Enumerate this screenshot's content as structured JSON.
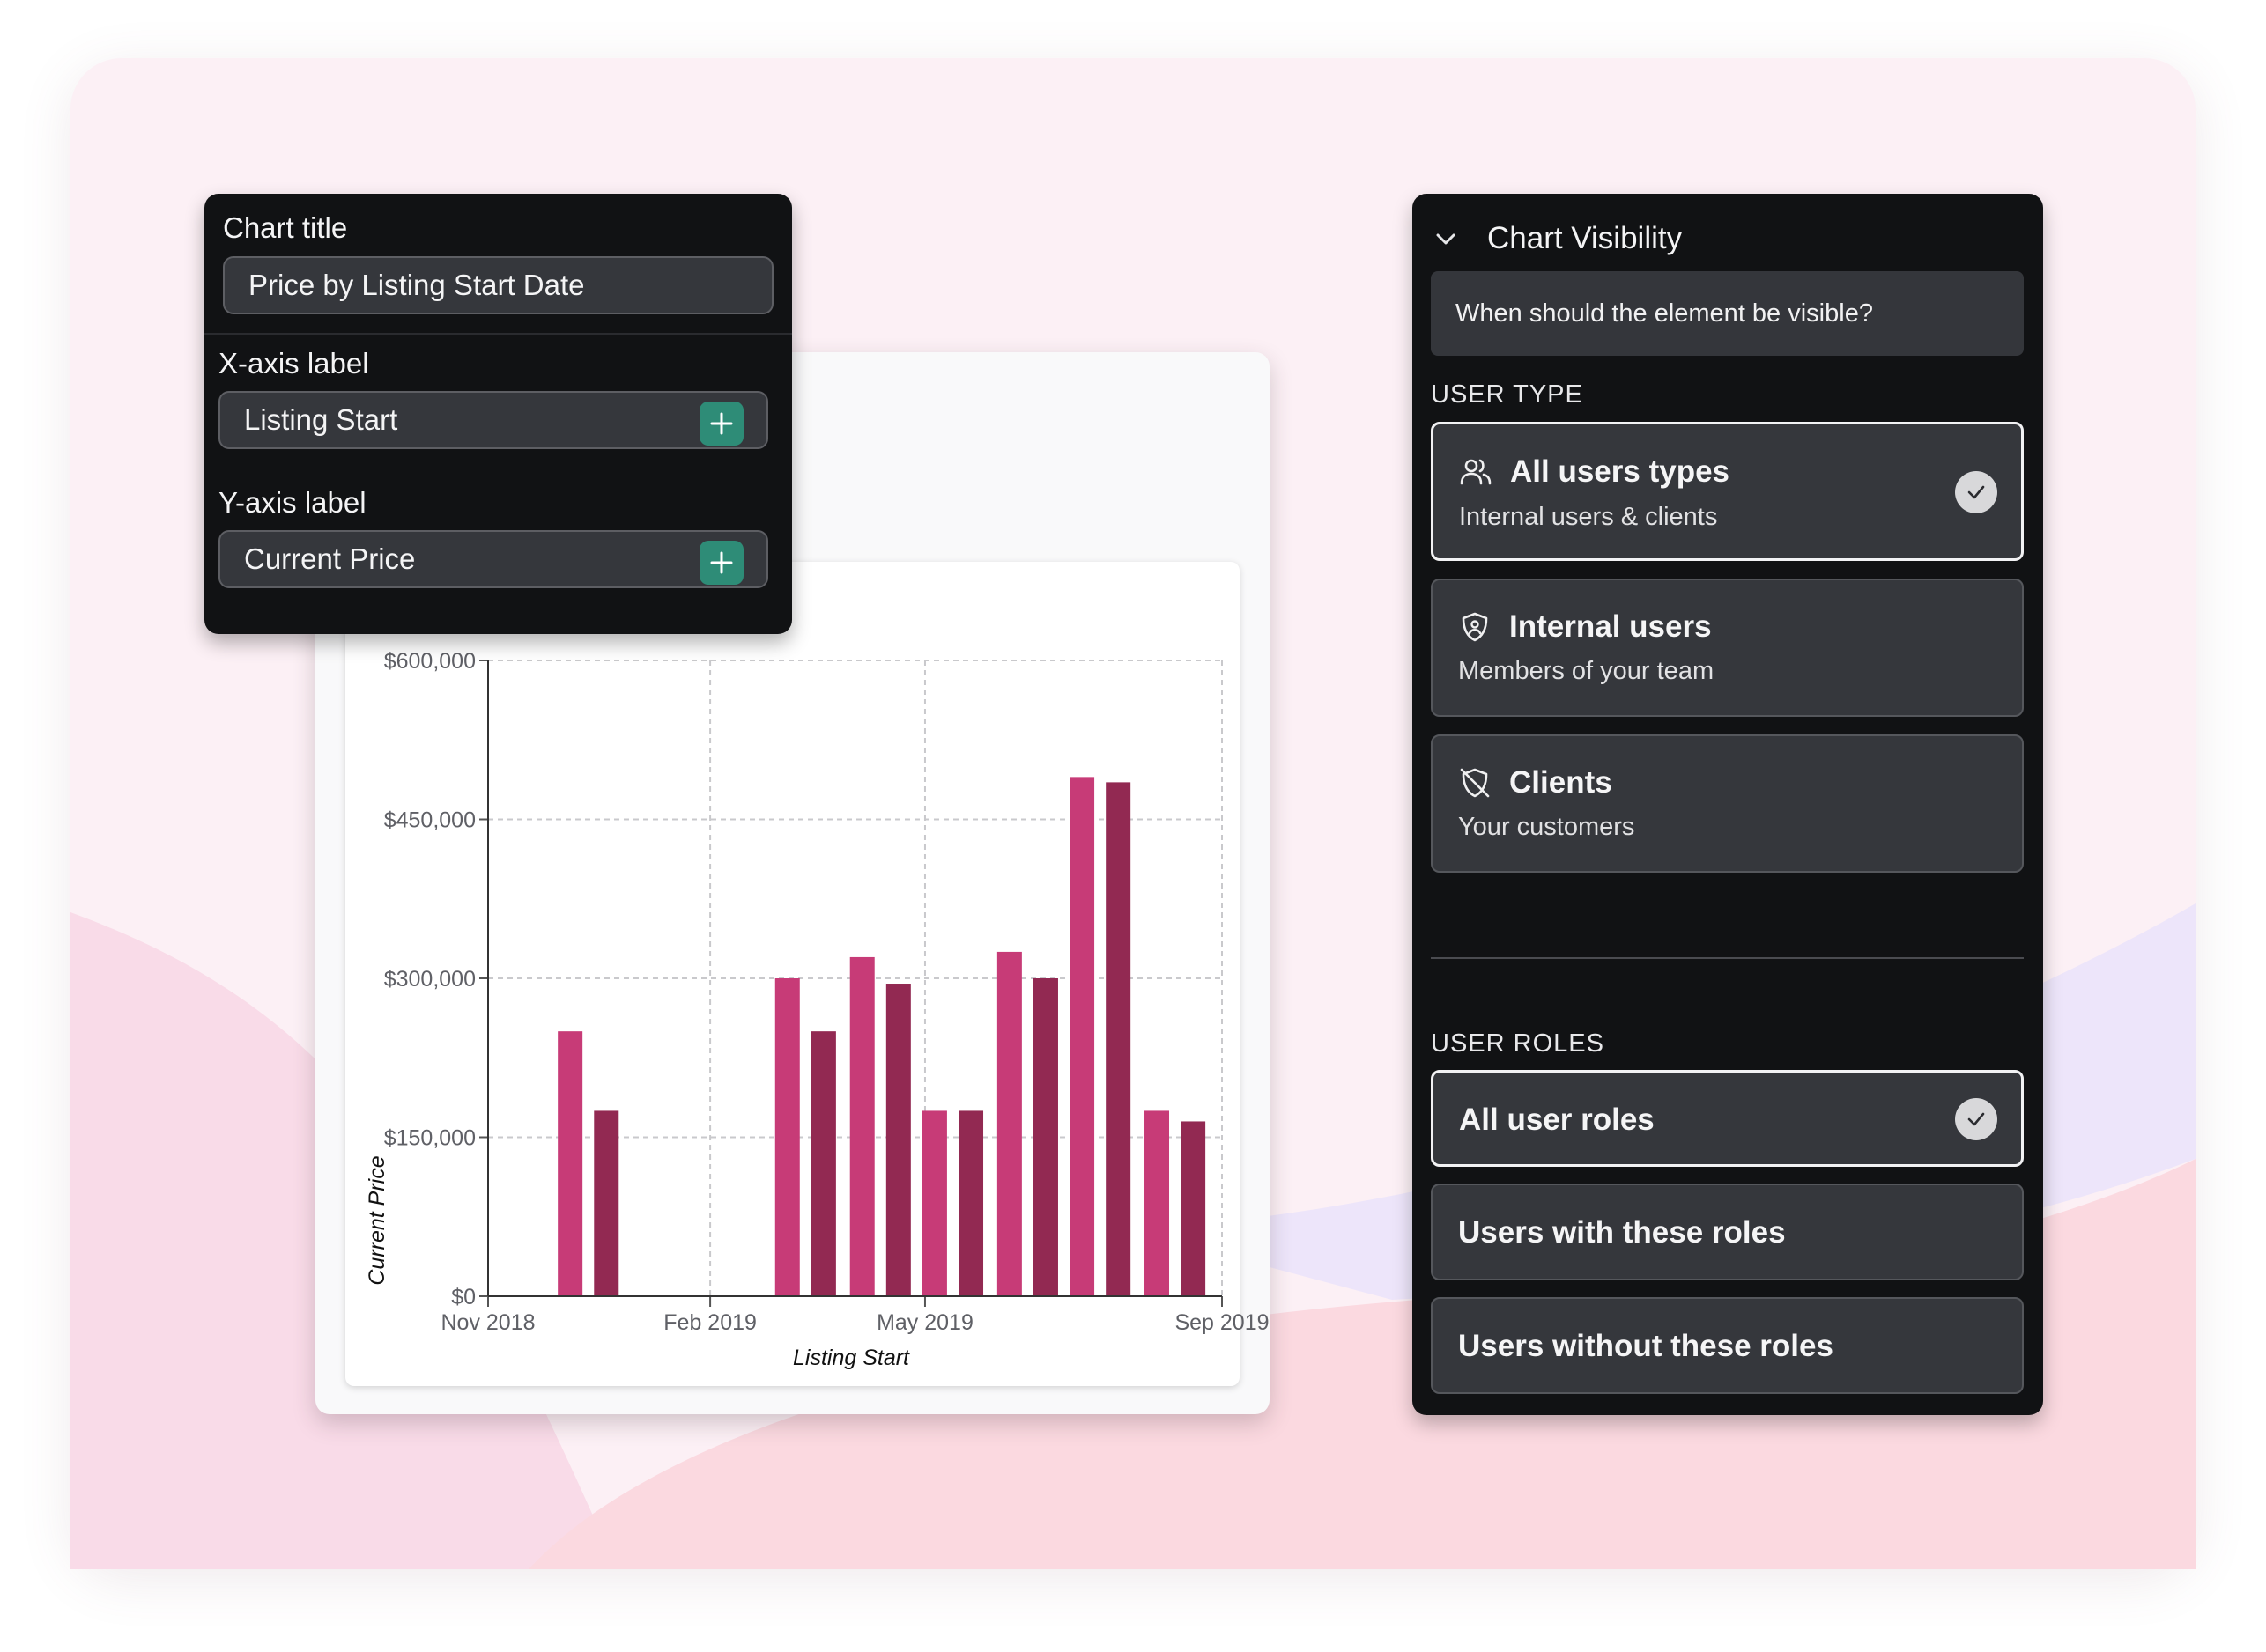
{
  "settings": {
    "chart_title_label": "Chart title",
    "chart_title_value": "Price by Listing Start Date",
    "x_label_label": "X-axis label",
    "x_label_value": "Listing Start",
    "y_label_label": "Y-axis label",
    "y_label_value": "Current Price",
    "add_icon": "plus-icon",
    "accent_color": "#2e8c77"
  },
  "visibility": {
    "header_icon": "chevron-down-icon",
    "title": "Chart Visibility",
    "question": "When should the element be visible?",
    "user_type_heading": "USER TYPE",
    "user_types": [
      {
        "title": "All users types",
        "subtitle": "Internal users & clients",
        "icon": "users-icon",
        "selected": true
      },
      {
        "title": "Internal users",
        "subtitle": "Members of your team",
        "icon": "shield-icon",
        "selected": false
      },
      {
        "title": "Clients",
        "subtitle": "Your customers",
        "icon": "shield-off-icon",
        "selected": false
      }
    ],
    "user_roles_heading": "USER ROLES",
    "user_roles": [
      {
        "title": "All user roles",
        "selected": true
      },
      {
        "title": "Users with these roles",
        "selected": false
      },
      {
        "title": "Users without these roles",
        "selected": false
      }
    ]
  },
  "chart_data": {
    "type": "bar",
    "xlabel": "Listing Start",
    "ylabel": "Current Price",
    "x_ticks": [
      "Nov 2018",
      "Feb 2019",
      "May 2019",
      "Sep 2019"
    ],
    "y_ticks": [
      "$0",
      "$150,000",
      "$300,000",
      "$450,000",
      "$600,000"
    ],
    "ylim": [
      0,
      600000
    ],
    "grid": true,
    "colors": [
      "#c73b77",
      "#922952"
    ],
    "bars": [
      {
        "date": "2018-12-05",
        "value": 250000,
        "color": 0
      },
      {
        "date": "2018-12-20",
        "value": 175000,
        "color": 1
      },
      {
        "date": "2019-03-05",
        "value": 300000,
        "color": 0
      },
      {
        "date": "2019-03-20",
        "value": 250000,
        "color": 1
      },
      {
        "date": "2019-04-05",
        "value": 320000,
        "color": 0
      },
      {
        "date": "2019-04-20",
        "value": 295000,
        "color": 1
      },
      {
        "date": "2019-05-05",
        "value": 175000,
        "color": 0
      },
      {
        "date": "2019-05-20",
        "value": 175000,
        "color": 1
      },
      {
        "date": "2019-06-05",
        "value": 325000,
        "color": 0
      },
      {
        "date": "2019-06-20",
        "value": 300000,
        "color": 1
      },
      {
        "date": "2019-07-05",
        "value": 490000,
        "color": 0
      },
      {
        "date": "2019-07-20",
        "value": 485000,
        "color": 1
      },
      {
        "date": "2019-08-05",
        "value": 175000,
        "color": 0
      },
      {
        "date": "2019-08-20",
        "value": 165000,
        "color": 1
      }
    ]
  }
}
